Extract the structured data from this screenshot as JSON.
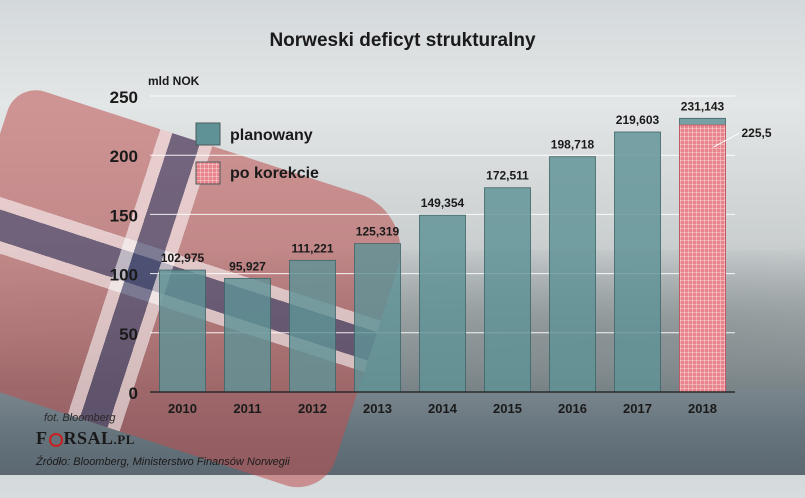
{
  "header": {
    "title": "Norweski deficyt strukturalny",
    "unit": "mld NOK"
  },
  "footer": {
    "photo_credit": "fot. Bloomberg",
    "brand_prefix": "F",
    "brand_rest": "RSAL",
    "brand_suffix": ".PL",
    "source": "Źródło: Bloomberg,  Ministerstwo Finansów Norwegii"
  },
  "colors": {
    "planned": "#5f9296",
    "corrected": "#e8848c",
    "corrected_grid": "#ffffff",
    "gridline": "#ffffff",
    "axis": "#2a2a2a"
  },
  "chart_data": {
    "type": "bar",
    "title": "Norweski deficyt strukturalny",
    "ylabel": "mld NOK",
    "ylim": [
      0,
      250
    ],
    "yticks": [
      0,
      50,
      100,
      150,
      200,
      250
    ],
    "grid": true,
    "legend_position": "top-left",
    "categories": [
      "2010",
      "2011",
      "2012",
      "2013",
      "2014",
      "2015",
      "2016",
      "2017",
      "2018"
    ],
    "series": [
      {
        "name": "planowany",
        "values": [
          102.975,
          95.927,
          111.221,
          125.319,
          149.354,
          172.511,
          198.718,
          219.603,
          231.143
        ],
        "labels": [
          "102,975",
          "95,927",
          "111,221",
          "125,319",
          "149,354",
          "172,511",
          "198,718",
          "219,603",
          "231,143"
        ]
      },
      {
        "name": "po korekcie",
        "values": [
          null,
          null,
          null,
          null,
          null,
          null,
          null,
          null,
          225.5
        ],
        "labels": [
          null,
          null,
          null,
          null,
          null,
          null,
          null,
          null,
          "225,5"
        ]
      }
    ]
  }
}
